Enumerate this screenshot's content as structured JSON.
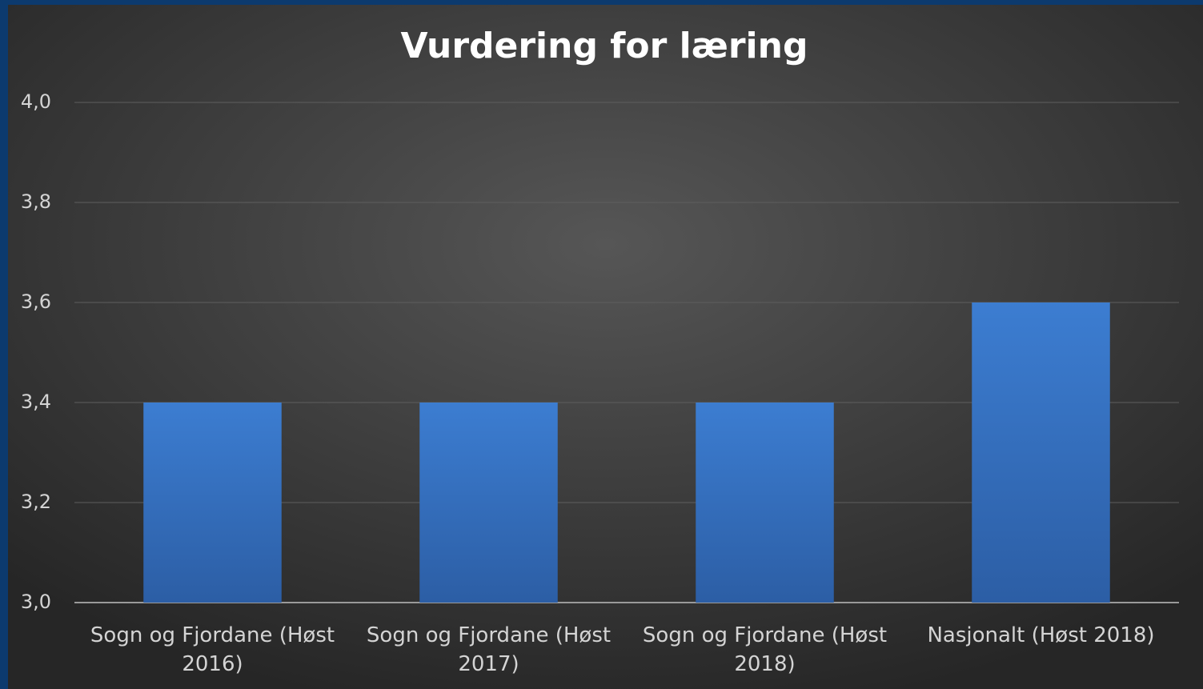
{
  "chart_data": {
    "type": "bar",
    "title": "Vurdering for læring",
    "categories": [
      "Sogn og Fjordane (Høst 2016)",
      "Sogn og Fjordane (Høst 2017)",
      "Sogn og Fjordane (Høst 2018)",
      "Nasjonalt (Høst 2018)"
    ],
    "values": [
      3.4,
      3.4,
      3.4,
      3.6
    ],
    "color": "#3a7bd0",
    "ylim": [
      3.0,
      4.0
    ],
    "yticks": [
      {
        "value": 3.0,
        "label": "3,0"
      },
      {
        "value": 3.2,
        "label": "3,2"
      },
      {
        "value": 3.4,
        "label": "3,4"
      },
      {
        "value": 3.6,
        "label": "3,6"
      },
      {
        "value": 3.8,
        "label": "3,8"
      },
      {
        "value": 4.0,
        "label": "4,0"
      }
    ],
    "grid": true
  }
}
